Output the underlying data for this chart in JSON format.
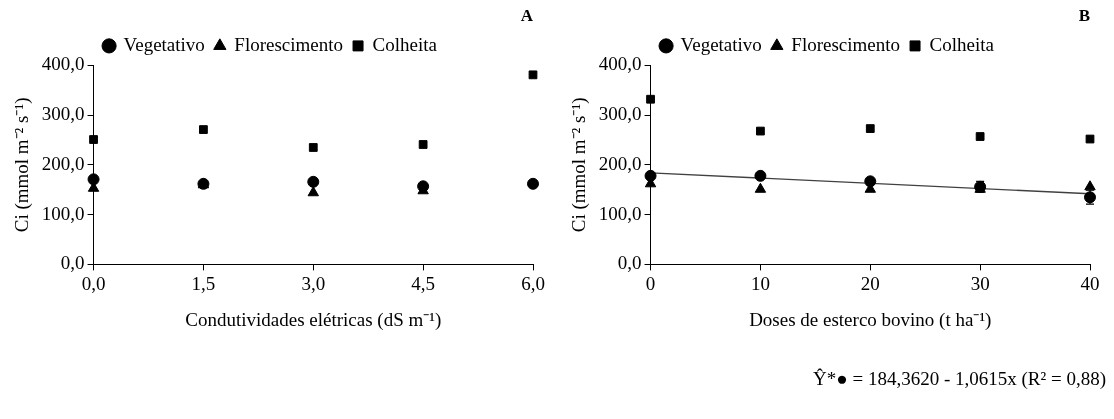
{
  "chart_data": [
    {
      "type": "scatter",
      "title": "A",
      "xlabel": "Condutividades elétricas (dS m⁻¹)",
      "ylabel": "Ci (mmol m⁻² s⁻¹)",
      "x": [
        0,
        1.5,
        3,
        4.5,
        6
      ],
      "xlim": [
        0,
        6
      ],
      "xticks": [
        {
          "value": 0,
          "label": "0,0"
        },
        {
          "value": 1.5,
          "label": "1,5"
        },
        {
          "value": 3,
          "label": "3,0"
        },
        {
          "value": 4.5,
          "label": "4,5"
        },
        {
          "value": 6,
          "label": "6,0"
        }
      ],
      "ylim": [
        0,
        400
      ],
      "yticks": [
        {
          "value": 0,
          "label": "0,0"
        },
        {
          "value": 100,
          "label": "100,0"
        },
        {
          "value": 200,
          "label": "200,0"
        },
        {
          "value": 300,
          "label": "300,0"
        },
        {
          "value": 400,
          "label": "400,0"
        }
      ],
      "legend": "top",
      "series": [
        {
          "name": "Vegetativo",
          "color": "#000000",
          "marker": "circle",
          "values": [
            171,
            162,
            166,
            157,
            162
          ]
        },
        {
          "name": "Florescimento",
          "color": "#000000",
          "marker": "triangle",
          "values": [
            153,
            160,
            144,
            148,
            null
          ]
        },
        {
          "name": "Colheita",
          "color": "#000000",
          "marker": "square",
          "values": [
            251,
            271,
            235,
            241,
            381
          ]
        }
      ]
    },
    {
      "type": "scatter",
      "title": "B",
      "xlabel": "Doses de esterco bovino (t ha⁻¹)",
      "ylabel": "Ci (mmol m⁻² s⁻¹)",
      "x": [
        0,
        10,
        20,
        30,
        40
      ],
      "xlim": [
        0,
        40
      ],
      "xticks": [
        0,
        10,
        20,
        30,
        40
      ],
      "ylim": [
        0,
        400
      ],
      "yticks": [
        {
          "value": 0,
          "label": "0,0"
        },
        {
          "value": 100,
          "label": "100,0"
        },
        {
          "value": 200,
          "label": "200,0"
        },
        {
          "value": 300,
          "label": "300,0"
        },
        {
          "value": 400,
          "label": "400,0"
        }
      ],
      "legend": "top",
      "annotations": [
        "Ŷ*● = 184,3620 - 1,0615x (R² = 0,88)"
      ],
      "series": [
        {
          "name": "Vegetativo",
          "color": "#000000",
          "marker": "circle",
          "values": [
            178,
            178,
            167,
            156,
            135
          ],
          "errors": [
            null,
            null,
            null,
            11,
            14
          ]
        },
        {
          "name": "Florescimento",
          "color": "#000000",
          "marker": "triangle",
          "values": [
            162,
            151,
            151,
            151,
            156
          ]
        },
        {
          "name": "Colheita",
          "color": "#000000",
          "marker": "square",
          "values": [
            332,
            268,
            273,
            257,
            252
          ]
        },
        {
          "type": "line",
          "color": "#404040",
          "marker": "none",
          "line_style": "solid",
          "x": [
            0,
            40
          ],
          "values": [
            184,
            142
          ]
        }
      ]
    }
  ]
}
